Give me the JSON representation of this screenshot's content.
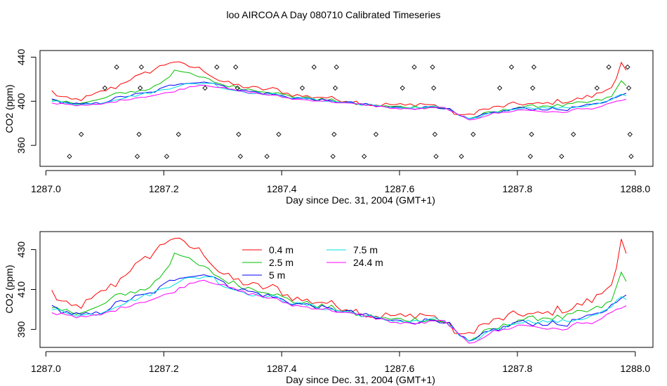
{
  "title": "loo AIRCOA A  Day 080710  Calibrated Timeseries",
  "chart_data": [
    {
      "type": "scatter+line",
      "xlabel": "Day since Dec. 31, 2004 (GMT+1)",
      "ylabel": "CO2 (ppm)",
      "xlim": [
        1286.99,
        1288.03
      ],
      "ylim": [
        341,
        446
      ],
      "xticks": [
        1287.0,
        1287.2,
        1287.4,
        1287.6,
        1287.8,
        1288.0
      ],
      "xtick_labels": [
        "1287.0",
        "1287.2",
        "1287.4",
        "1287.6",
        "1287.8",
        "1288.0"
      ],
      "yticks": [
        360,
        400,
        440
      ],
      "ytick_labels": [
        "360",
        "400",
        "440"
      ],
      "calibration_points": [
        {
          "x": 1287.04,
          "y": 350
        },
        {
          "x": 1287.06,
          "y": 370
        },
        {
          "x": 1287.1,
          "y": 412
        },
        {
          "x": 1287.12,
          "y": 431
        },
        {
          "x": 1287.155,
          "y": 350
        },
        {
          "x": 1287.158,
          "y": 370
        },
        {
          "x": 1287.16,
          "y": 412
        },
        {
          "x": 1287.162,
          "y": 431
        },
        {
          "x": 1287.205,
          "y": 350
        },
        {
          "x": 1287.225,
          "y": 370
        },
        {
          "x": 1287.27,
          "y": 412
        },
        {
          "x": 1287.29,
          "y": 431
        },
        {
          "x": 1287.322,
          "y": 431
        },
        {
          "x": 1287.325,
          "y": 412
        },
        {
          "x": 1287.327,
          "y": 370
        },
        {
          "x": 1287.33,
          "y": 350
        },
        {
          "x": 1287.375,
          "y": 350
        },
        {
          "x": 1287.395,
          "y": 370
        },
        {
          "x": 1287.435,
          "y": 412
        },
        {
          "x": 1287.455,
          "y": 431
        },
        {
          "x": 1287.487,
          "y": 350
        },
        {
          "x": 1287.489,
          "y": 370
        },
        {
          "x": 1287.491,
          "y": 412
        },
        {
          "x": 1287.493,
          "y": 431
        },
        {
          "x": 1287.54,
          "y": 350
        },
        {
          "x": 1287.56,
          "y": 370
        },
        {
          "x": 1287.605,
          "y": 412
        },
        {
          "x": 1287.625,
          "y": 431
        },
        {
          "x": 1287.656,
          "y": 431
        },
        {
          "x": 1287.658,
          "y": 412
        },
        {
          "x": 1287.66,
          "y": 370
        },
        {
          "x": 1287.662,
          "y": 350
        },
        {
          "x": 1287.705,
          "y": 350
        },
        {
          "x": 1287.725,
          "y": 370
        },
        {
          "x": 1287.77,
          "y": 412
        },
        {
          "x": 1287.79,
          "y": 431
        },
        {
          "x": 1287.822,
          "y": 350
        },
        {
          "x": 1287.824,
          "y": 370
        },
        {
          "x": 1287.826,
          "y": 412
        },
        {
          "x": 1287.828,
          "y": 431
        },
        {
          "x": 1287.875,
          "y": 350
        },
        {
          "x": 1287.895,
          "y": 370
        },
        {
          "x": 1287.935,
          "y": 412
        },
        {
          "x": 1287.955,
          "y": 431
        },
        {
          "x": 1287.987,
          "y": 431
        },
        {
          "x": 1287.989,
          "y": 412
        },
        {
          "x": 1287.991,
          "y": 370
        },
        {
          "x": 1287.993,
          "y": 350
        }
      ]
    },
    {
      "type": "line",
      "xlabel": "Day since Dec. 31, 2004 (GMT+1)",
      "ylabel": "CO2 (ppm)",
      "xlim": [
        1286.99,
        1288.03
      ],
      "ylim": [
        381,
        439
      ],
      "xticks": [
        1287.0,
        1287.2,
        1287.4,
        1287.6,
        1287.8,
        1288.0
      ],
      "xtick_labels": [
        "1287.0",
        "1287.2",
        "1287.4",
        "1287.6",
        "1287.8",
        "1288.0"
      ],
      "yticks": [
        390,
        410,
        430
      ],
      "ytick_labels": [
        "390",
        "410",
        "430"
      ],
      "legend_position": "top-center",
      "legend_layout": [
        [
          0,
          1,
          2
        ],
        [
          3,
          4
        ]
      ]
    }
  ],
  "series": [
    {
      "name": "0.4 m",
      "color": "#ff0000",
      "keyframes": [
        [
          1287.01,
          409
        ],
        [
          1287.02,
          405
        ],
        [
          1287.04,
          401
        ],
        [
          1287.06,
          402
        ],
        [
          1287.08,
          405
        ],
        [
          1287.1,
          410
        ],
        [
          1287.12,
          413
        ],
        [
          1287.14,
          420
        ],
        [
          1287.16,
          423
        ],
        [
          1287.18,
          428
        ],
        [
          1287.2,
          433
        ],
        [
          1287.215,
          437
        ],
        [
          1287.23,
          433
        ],
        [
          1287.25,
          431
        ],
        [
          1287.27,
          428
        ],
        [
          1287.29,
          420
        ],
        [
          1287.31,
          416
        ],
        [
          1287.33,
          414
        ],
        [
          1287.35,
          412
        ],
        [
          1287.37,
          411
        ],
        [
          1287.39,
          411
        ],
        [
          1287.41,
          407
        ],
        [
          1287.43,
          405
        ],
        [
          1287.45,
          404
        ],
        [
          1287.47,
          404
        ],
        [
          1287.49,
          402
        ],
        [
          1287.51,
          401
        ],
        [
          1287.53,
          399
        ],
        [
          1287.55,
          397
        ],
        [
          1287.57,
          397
        ],
        [
          1287.59,
          397
        ],
        [
          1287.61,
          396
        ],
        [
          1287.63,
          398
        ],
        [
          1287.65,
          397
        ],
        [
          1287.67,
          395
        ],
        [
          1287.69,
          390
        ],
        [
          1287.71,
          386
        ],
        [
          1287.73,
          391
        ],
        [
          1287.75,
          393
        ],
        [
          1287.77,
          395
        ],
        [
          1287.79,
          397
        ],
        [
          1287.81,
          398
        ],
        [
          1287.83,
          397
        ],
        [
          1287.85,
          398
        ],
        [
          1287.87,
          400
        ],
        [
          1287.89,
          400
        ],
        [
          1287.91,
          403
        ],
        [
          1287.93,
          405
        ],
        [
          1287.95,
          410
        ],
        [
          1287.965,
          417
        ],
        [
          1287.978,
          437
        ],
        [
          1287.992,
          415
        ]
      ],
      "noise": 2.2
    },
    {
      "name": "2.5 m",
      "color": "#00c000",
      "keyframes": [
        [
          1287.01,
          400
        ],
        [
          1287.03,
          399
        ],
        [
          1287.05,
          399
        ],
        [
          1287.07,
          399
        ],
        [
          1287.09,
          401
        ],
        [
          1287.11,
          405
        ],
        [
          1287.13,
          408
        ],
        [
          1287.15,
          409
        ],
        [
          1287.17,
          410
        ],
        [
          1287.19,
          415
        ],
        [
          1287.21,
          423
        ],
        [
          1287.22,
          430
        ],
        [
          1287.24,
          425
        ],
        [
          1287.26,
          422
        ],
        [
          1287.28,
          419
        ],
        [
          1287.3,
          415
        ],
        [
          1287.32,
          413
        ],
        [
          1287.34,
          411
        ],
        [
          1287.36,
          410
        ],
        [
          1287.38,
          409
        ],
        [
          1287.4,
          406
        ],
        [
          1287.42,
          404
        ],
        [
          1287.44,
          403
        ],
        [
          1287.46,
          402
        ],
        [
          1287.48,
          401
        ],
        [
          1287.5,
          400
        ],
        [
          1287.52,
          398
        ],
        [
          1287.54,
          397
        ],
        [
          1287.56,
          396
        ],
        [
          1287.58,
          395
        ],
        [
          1287.6,
          395
        ],
        [
          1287.62,
          395
        ],
        [
          1287.64,
          395
        ],
        [
          1287.66,
          395
        ],
        [
          1287.68,
          393
        ],
        [
          1287.7,
          388
        ],
        [
          1287.72,
          384
        ],
        [
          1287.74,
          388
        ],
        [
          1287.76,
          390
        ],
        [
          1287.78,
          392
        ],
        [
          1287.8,
          395
        ],
        [
          1287.82,
          395
        ],
        [
          1287.84,
          396
        ],
        [
          1287.86,
          396
        ],
        [
          1287.88,
          396
        ],
        [
          1287.9,
          398
        ],
        [
          1287.92,
          399
        ],
        [
          1287.94,
          401
        ],
        [
          1287.96,
          404
        ],
        [
          1287.978,
          420
        ],
        [
          1287.992,
          410
        ]
      ],
      "noise": 1.5
    },
    {
      "name": "5 m",
      "color": "#0000ff",
      "keyframes": [
        [
          1287.01,
          401
        ],
        [
          1287.03,
          399
        ],
        [
          1287.06,
          397
        ],
        [
          1287.09,
          398
        ],
        [
          1287.12,
          403
        ],
        [
          1287.15,
          406
        ],
        [
          1287.18,
          408
        ],
        [
          1287.21,
          414
        ],
        [
          1287.23,
          417
        ],
        [
          1287.26,
          417
        ],
        [
          1287.28,
          418
        ],
        [
          1287.3,
          413
        ],
        [
          1287.33,
          410
        ],
        [
          1287.36,
          408
        ],
        [
          1287.39,
          406
        ],
        [
          1287.42,
          403
        ],
        [
          1287.45,
          402
        ],
        [
          1287.48,
          400
        ],
        [
          1287.51,
          399
        ],
        [
          1287.54,
          397
        ],
        [
          1287.57,
          395
        ],
        [
          1287.6,
          394
        ],
        [
          1287.63,
          394
        ],
        [
          1287.66,
          395
        ],
        [
          1287.68,
          394
        ],
        [
          1287.7,
          387
        ],
        [
          1287.72,
          383
        ],
        [
          1287.74,
          387
        ],
        [
          1287.76,
          390
        ],
        [
          1287.78,
          391
        ],
        [
          1287.8,
          394
        ],
        [
          1287.82,
          393
        ],
        [
          1287.84,
          393
        ],
        [
          1287.86,
          393
        ],
        [
          1287.88,
          392
        ],
        [
          1287.9,
          395
        ],
        [
          1287.92,
          396
        ],
        [
          1287.94,
          398
        ],
        [
          1287.96,
          402
        ],
        [
          1287.975,
          407
        ],
        [
          1287.99,
          406
        ]
      ],
      "noise": 1.3
    },
    {
      "name": "7.5 m",
      "color": "#00e0e0",
      "keyframes": [
        [
          1287.01,
          400
        ],
        [
          1287.03,
          399
        ],
        [
          1287.06,
          397
        ],
        [
          1287.09,
          398
        ],
        [
          1287.12,
          402
        ],
        [
          1287.15,
          405
        ],
        [
          1287.18,
          408
        ],
        [
          1287.21,
          412
        ],
        [
          1287.23,
          415
        ],
        [
          1287.26,
          416
        ],
        [
          1287.28,
          417
        ],
        [
          1287.3,
          412
        ],
        [
          1287.33,
          409
        ],
        [
          1287.36,
          407
        ],
        [
          1287.39,
          406
        ],
        [
          1287.42,
          403
        ],
        [
          1287.45,
          402
        ],
        [
          1287.48,
          400
        ],
        [
          1287.51,
          399
        ],
        [
          1287.54,
          397
        ],
        [
          1287.57,
          395
        ],
        [
          1287.6,
          394
        ],
        [
          1287.63,
          394
        ],
        [
          1287.66,
          395
        ],
        [
          1287.68,
          394
        ],
        [
          1287.7,
          387
        ],
        [
          1287.72,
          383
        ],
        [
          1287.74,
          387
        ],
        [
          1287.76,
          390
        ],
        [
          1287.78,
          391
        ],
        [
          1287.8,
          394
        ],
        [
          1287.82,
          394
        ],
        [
          1287.84,
          394
        ],
        [
          1287.86,
          394
        ],
        [
          1287.88,
          394
        ],
        [
          1287.9,
          395
        ],
        [
          1287.92,
          396
        ],
        [
          1287.94,
          398
        ],
        [
          1287.96,
          401
        ],
        [
          1287.975,
          406
        ],
        [
          1287.99,
          405
        ]
      ],
      "noise": 1.0
    },
    {
      "name": "24.4 m",
      "color": "#ff00ff",
      "keyframes": [
        [
          1287.01,
          398
        ],
        [
          1287.03,
          398
        ],
        [
          1287.06,
          396
        ],
        [
          1287.09,
          397
        ],
        [
          1287.12,
          400
        ],
        [
          1287.15,
          403
        ],
        [
          1287.18,
          405
        ],
        [
          1287.21,
          408
        ],
        [
          1287.23,
          411
        ],
        [
          1287.25,
          414
        ],
        [
          1287.27,
          415
        ],
        [
          1287.29,
          413
        ],
        [
          1287.31,
          411
        ],
        [
          1287.33,
          409
        ],
        [
          1287.36,
          407
        ],
        [
          1287.39,
          405
        ],
        [
          1287.42,
          402
        ],
        [
          1287.45,
          401
        ],
        [
          1287.48,
          400
        ],
        [
          1287.51,
          398
        ],
        [
          1287.54,
          397
        ],
        [
          1287.57,
          395
        ],
        [
          1287.6,
          393
        ],
        [
          1287.63,
          393
        ],
        [
          1287.66,
          394
        ],
        [
          1287.68,
          394
        ],
        [
          1287.7,
          387
        ],
        [
          1287.72,
          383
        ],
        [
          1287.74,
          386
        ],
        [
          1287.76,
          389
        ],
        [
          1287.78,
          390
        ],
        [
          1287.8,
          392
        ],
        [
          1287.82,
          392
        ],
        [
          1287.84,
          391
        ],
        [
          1287.86,
          390
        ],
        [
          1287.88,
          390
        ],
        [
          1287.9,
          393
        ],
        [
          1287.92,
          393
        ],
        [
          1287.94,
          395
        ],
        [
          1287.96,
          398
        ],
        [
          1287.975,
          401
        ],
        [
          1287.99,
          402
        ]
      ],
      "noise": 0.8
    }
  ]
}
